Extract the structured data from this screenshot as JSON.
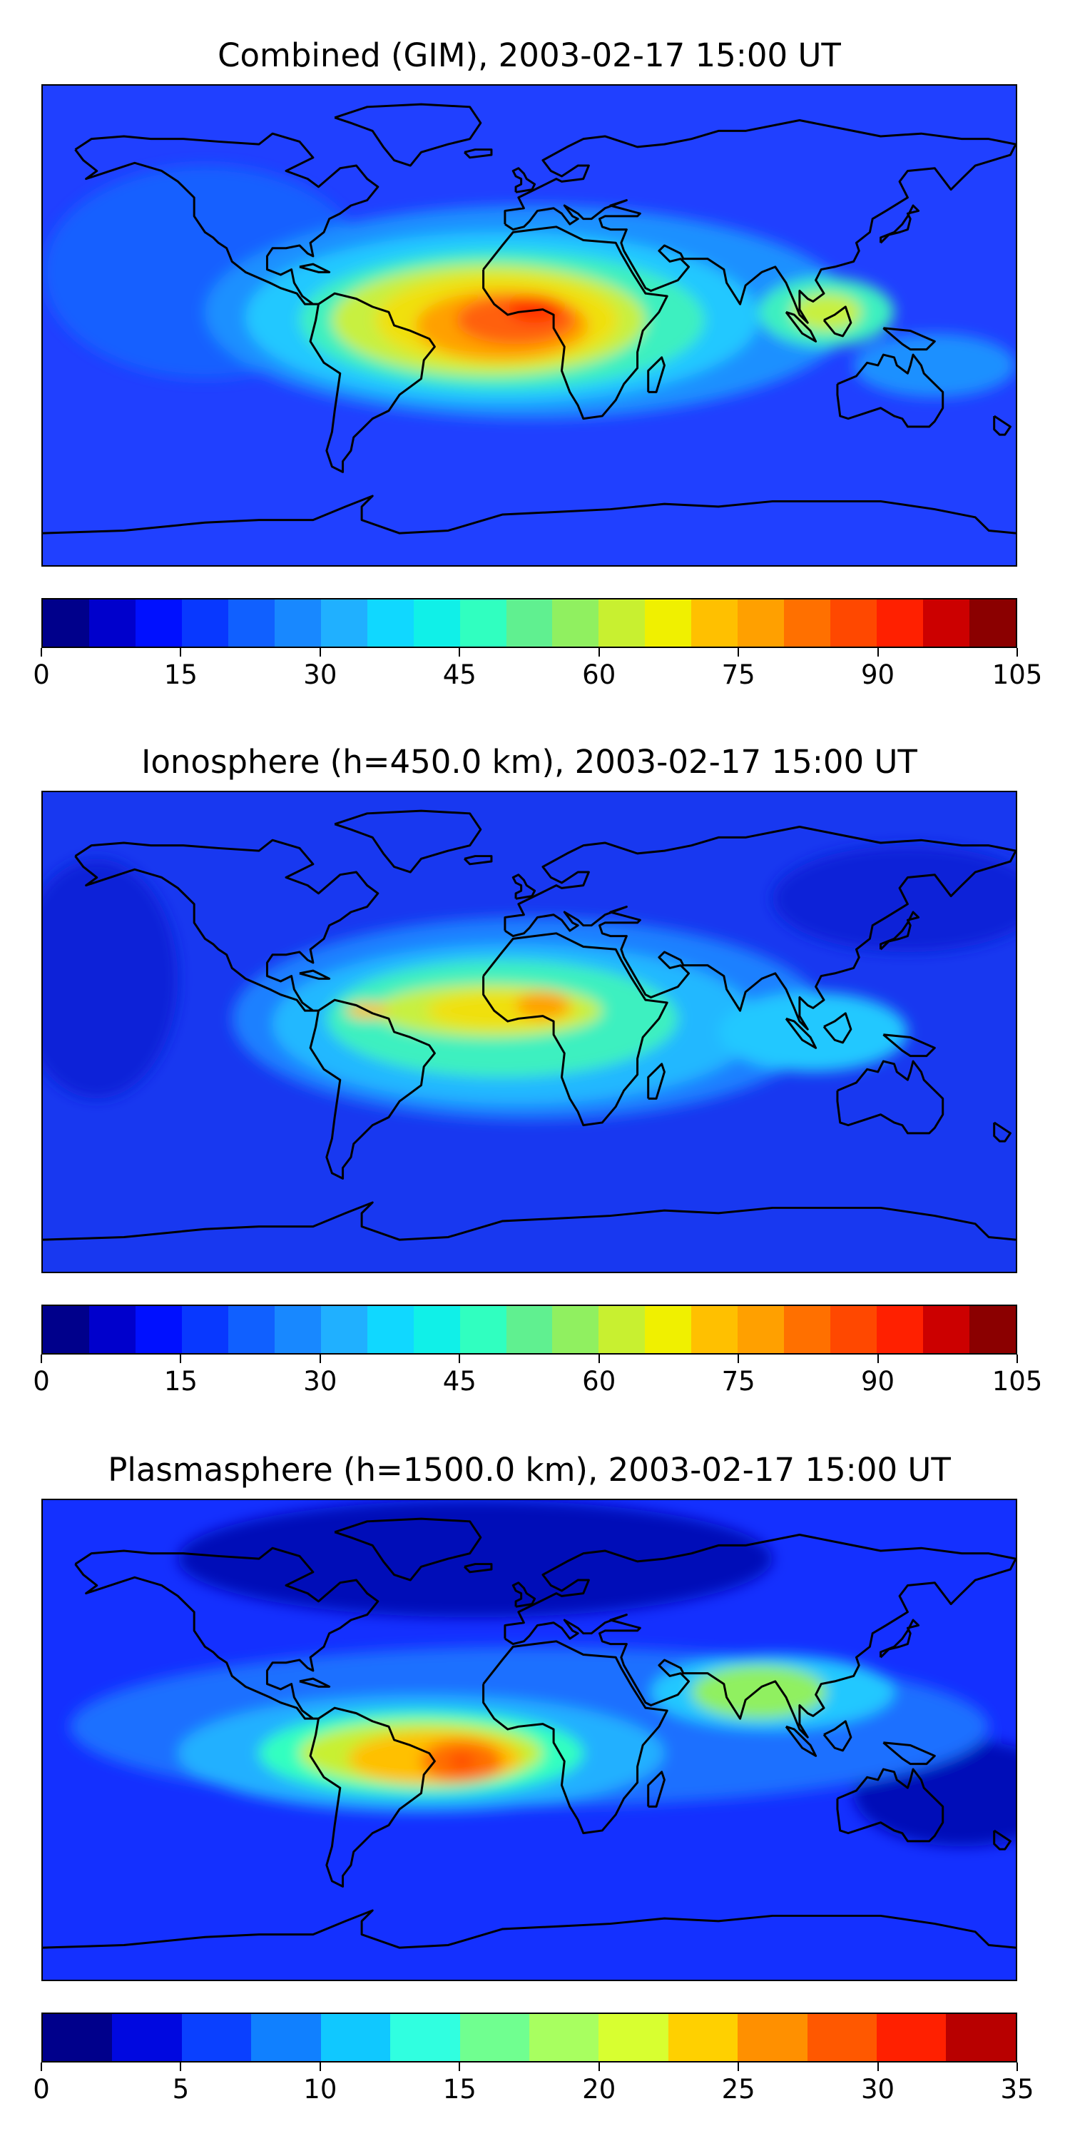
{
  "panels": [
    {
      "title": "Combined (GIM), 2003-02-17 15:00 UT",
      "background": "#2040ff",
      "blobs": [
        {
          "lon": -120,
          "lat": 20,
          "rx": 60,
          "ry": 40,
          "color": "#1560ff"
        },
        {
          "lon": 0,
          "lat": 5,
          "rx": 120,
          "ry": 40,
          "color": "#1f90ff"
        },
        {
          "lon": -10,
          "lat": 3,
          "rx": 95,
          "ry": 32,
          "color": "#22c8ff"
        },
        {
          "lon": -10,
          "lat": 2,
          "rx": 75,
          "ry": 26,
          "color": "#3cf0c0"
        },
        {
          "lon": -15,
          "lat": 2,
          "rx": 58,
          "ry": 21,
          "color": "#c8f040"
        },
        {
          "lon": -12,
          "lat": 2,
          "rx": 45,
          "ry": 17,
          "color": "#f0e010"
        },
        {
          "lon": -10,
          "lat": 0,
          "rx": 32,
          "ry": 13,
          "color": "#ffa000"
        },
        {
          "lon": -5,
          "lat": 2,
          "rx": 22,
          "ry": 9,
          "color": "#ff6010"
        },
        {
          "lon": 2,
          "lat": 6,
          "rx": 10,
          "ry": 5,
          "color": "#ff3000"
        },
        {
          "lon": 110,
          "lat": 5,
          "rx": 25,
          "ry": 13,
          "color": "#3cf0c0"
        },
        {
          "lon": 110,
          "lat": 5,
          "rx": 13,
          "ry": 7,
          "color": "#c8f040"
        },
        {
          "lon": 150,
          "lat": -15,
          "rx": 30,
          "ry": 12,
          "color": "#1f90ff"
        }
      ],
      "colorbar": {
        "colors": [
          "#00008b",
          "#0000cc",
          "#0010ff",
          "#0838ff",
          "#1060ff",
          "#1888ff",
          "#20b0ff",
          "#10d8ff",
          "#10f0e8",
          "#30ffc0",
          "#60f090",
          "#90f060",
          "#c8f030",
          "#f0f000",
          "#ffc000",
          "#ffa000",
          "#ff7000",
          "#ff4800",
          "#ff2000",
          "#cc0000",
          "#8b0000"
        ],
        "ticks": [
          "0",
          "15",
          "30",
          "45",
          "60",
          "75",
          "90",
          "105"
        ],
        "min": 0,
        "max": 105
      }
    },
    {
      "title": "Ionosphere  (h=450.0 km), 2003-02-17 15:00 UT",
      "background": "#1838f0",
      "blobs": [
        {
          "lon": -160,
          "lat": 20,
          "rx": 30,
          "ry": 45,
          "color": "#0a20d8"
        },
        {
          "lon": 140,
          "lat": 50,
          "rx": 50,
          "ry": 20,
          "color": "#0a20d8"
        },
        {
          "lon": 0,
          "lat": 5,
          "rx": 110,
          "ry": 38,
          "color": "#1f80ff"
        },
        {
          "lon": -5,
          "lat": 3,
          "rx": 90,
          "ry": 30,
          "color": "#22b8ff"
        },
        {
          "lon": -10,
          "lat": 5,
          "rx": 65,
          "ry": 22,
          "color": "#3cf0c0"
        },
        {
          "lon": -15,
          "lat": 8,
          "rx": 42,
          "ry": 10,
          "color": "#c8f040"
        },
        {
          "lon": -10,
          "lat": 8,
          "rx": 28,
          "ry": 7,
          "color": "#f0e010"
        },
        {
          "lon": 5,
          "lat": 10,
          "rx": 10,
          "ry": 5,
          "color": "#ffa000"
        },
        {
          "lon": -60,
          "lat": 8,
          "rx": 8,
          "ry": 3,
          "color": "#ffc000"
        },
        {
          "lon": 105,
          "lat": 0,
          "rx": 35,
          "ry": 15,
          "color": "#22c8ff"
        }
      ],
      "colorbar": {
        "colors": [
          "#00008b",
          "#0000cc",
          "#0010ff",
          "#0838ff",
          "#1060ff",
          "#1888ff",
          "#20b0ff",
          "#10d8ff",
          "#10f0e8",
          "#30ffc0",
          "#60f090",
          "#90f060",
          "#c8f030",
          "#f0f000",
          "#ffc000",
          "#ffa000",
          "#ff7000",
          "#ff4800",
          "#ff2000",
          "#cc0000",
          "#8b0000"
        ],
        "ticks": [
          "0",
          "15",
          "30",
          "45",
          "60",
          "75",
          "90",
          "105"
        ],
        "min": 0,
        "max": 105
      }
    },
    {
      "title": "Plasmasphere (h=1500.0 km), 2003-02-17 15:00 UT",
      "background": "#1430ff",
      "blobs": [
        {
          "lon": -20,
          "lat": 68,
          "rx": 110,
          "ry": 22,
          "color": "#000ab8"
        },
        {
          "lon": 160,
          "lat": -20,
          "rx": 40,
          "ry": 20,
          "color": "#000ab8"
        },
        {
          "lon": 0,
          "lat": 5,
          "rx": 170,
          "ry": 30,
          "color": "#1a70ff"
        },
        {
          "lon": -40,
          "lat": -5,
          "rx": 90,
          "ry": 22,
          "color": "#20b0ff"
        },
        {
          "lon": 90,
          "lat": 18,
          "rx": 45,
          "ry": 14,
          "color": "#20c8ff"
        },
        {
          "lon": -40,
          "lat": -5,
          "rx": 60,
          "ry": 16,
          "color": "#30ffc0"
        },
        {
          "lon": 85,
          "lat": 18,
          "rx": 25,
          "ry": 10,
          "color": "#90f060"
        },
        {
          "lon": -40,
          "lat": -5,
          "rx": 45,
          "ry": 12,
          "color": "#c8f030"
        },
        {
          "lon": -35,
          "lat": -7,
          "rx": 32,
          "ry": 10,
          "color": "#ffc000"
        },
        {
          "lon": -25,
          "lat": -8,
          "rx": 15,
          "ry": 8,
          "color": "#ff7000"
        },
        {
          "lon": -25,
          "lat": -8,
          "rx": 5,
          "ry": 3,
          "color": "#ff4800"
        }
      ],
      "colorbar": {
        "colors": [
          "#00008b",
          "#0008e0",
          "#0a40ff",
          "#1080ff",
          "#10c8ff",
          "#30ffe0",
          "#70ff90",
          "#a8ff60",
          "#d8ff30",
          "#ffd000",
          "#ff9000",
          "#ff5800",
          "#ff2000",
          "#b80000"
        ],
        "ticks": [
          "0",
          "5",
          "10",
          "15",
          "20",
          "25",
          "30",
          "35"
        ],
        "min": 0,
        "max": 35
      }
    }
  ],
  "coastline_color": "#000000"
}
